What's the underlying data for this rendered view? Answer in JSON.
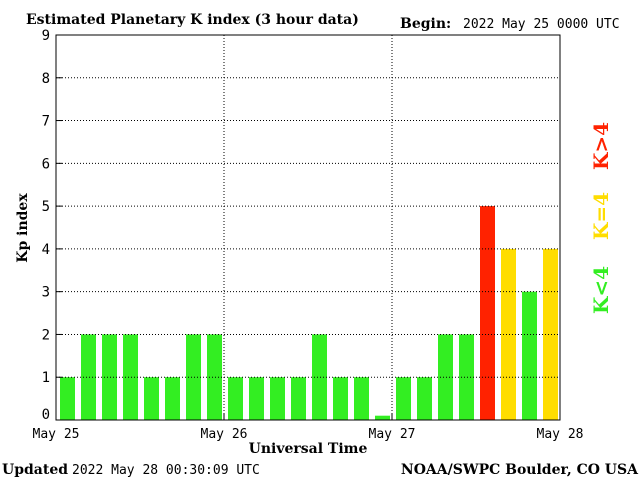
{
  "header": {
    "title": "Estimated Planetary K index (3 hour data)",
    "begin_label": "Begin:",
    "begin_value": "2022 May 25 0000 UTC"
  },
  "footer": {
    "updated_label": "Updated",
    "updated_value": "2022 May 28 00:30:09 UTC",
    "credit": "NOAA/SWPC Boulder, CO USA"
  },
  "legend": {
    "high": "K>4",
    "equal": "K=4",
    "low": "K<4"
  },
  "colors": {
    "low": "#33ee22",
    "equal": "#ffdd00",
    "high": "#ff2200",
    "axis": "#000000",
    "grid": "#000000"
  },
  "chart_data": {
    "type": "bar",
    "title": "Estimated Planetary K index (3 hour data)",
    "xlabel": "Universal Time",
    "ylabel": "Kp index",
    "ylim": [
      0,
      9
    ],
    "yticks": [
      0,
      1,
      2,
      3,
      4,
      5,
      6,
      7,
      8,
      9
    ],
    "xticks": [
      "May 25",
      "May 26",
      "May 27",
      "May 28"
    ],
    "interval_hours": 3,
    "grid": true,
    "legend_position": "right",
    "values": [
      1,
      2,
      2,
      2,
      1,
      1,
      2,
      2,
      1,
      1,
      1,
      1,
      2,
      1,
      1,
      0.1,
      1,
      1,
      2,
      2,
      5,
      4,
      3,
      4
    ]
  }
}
